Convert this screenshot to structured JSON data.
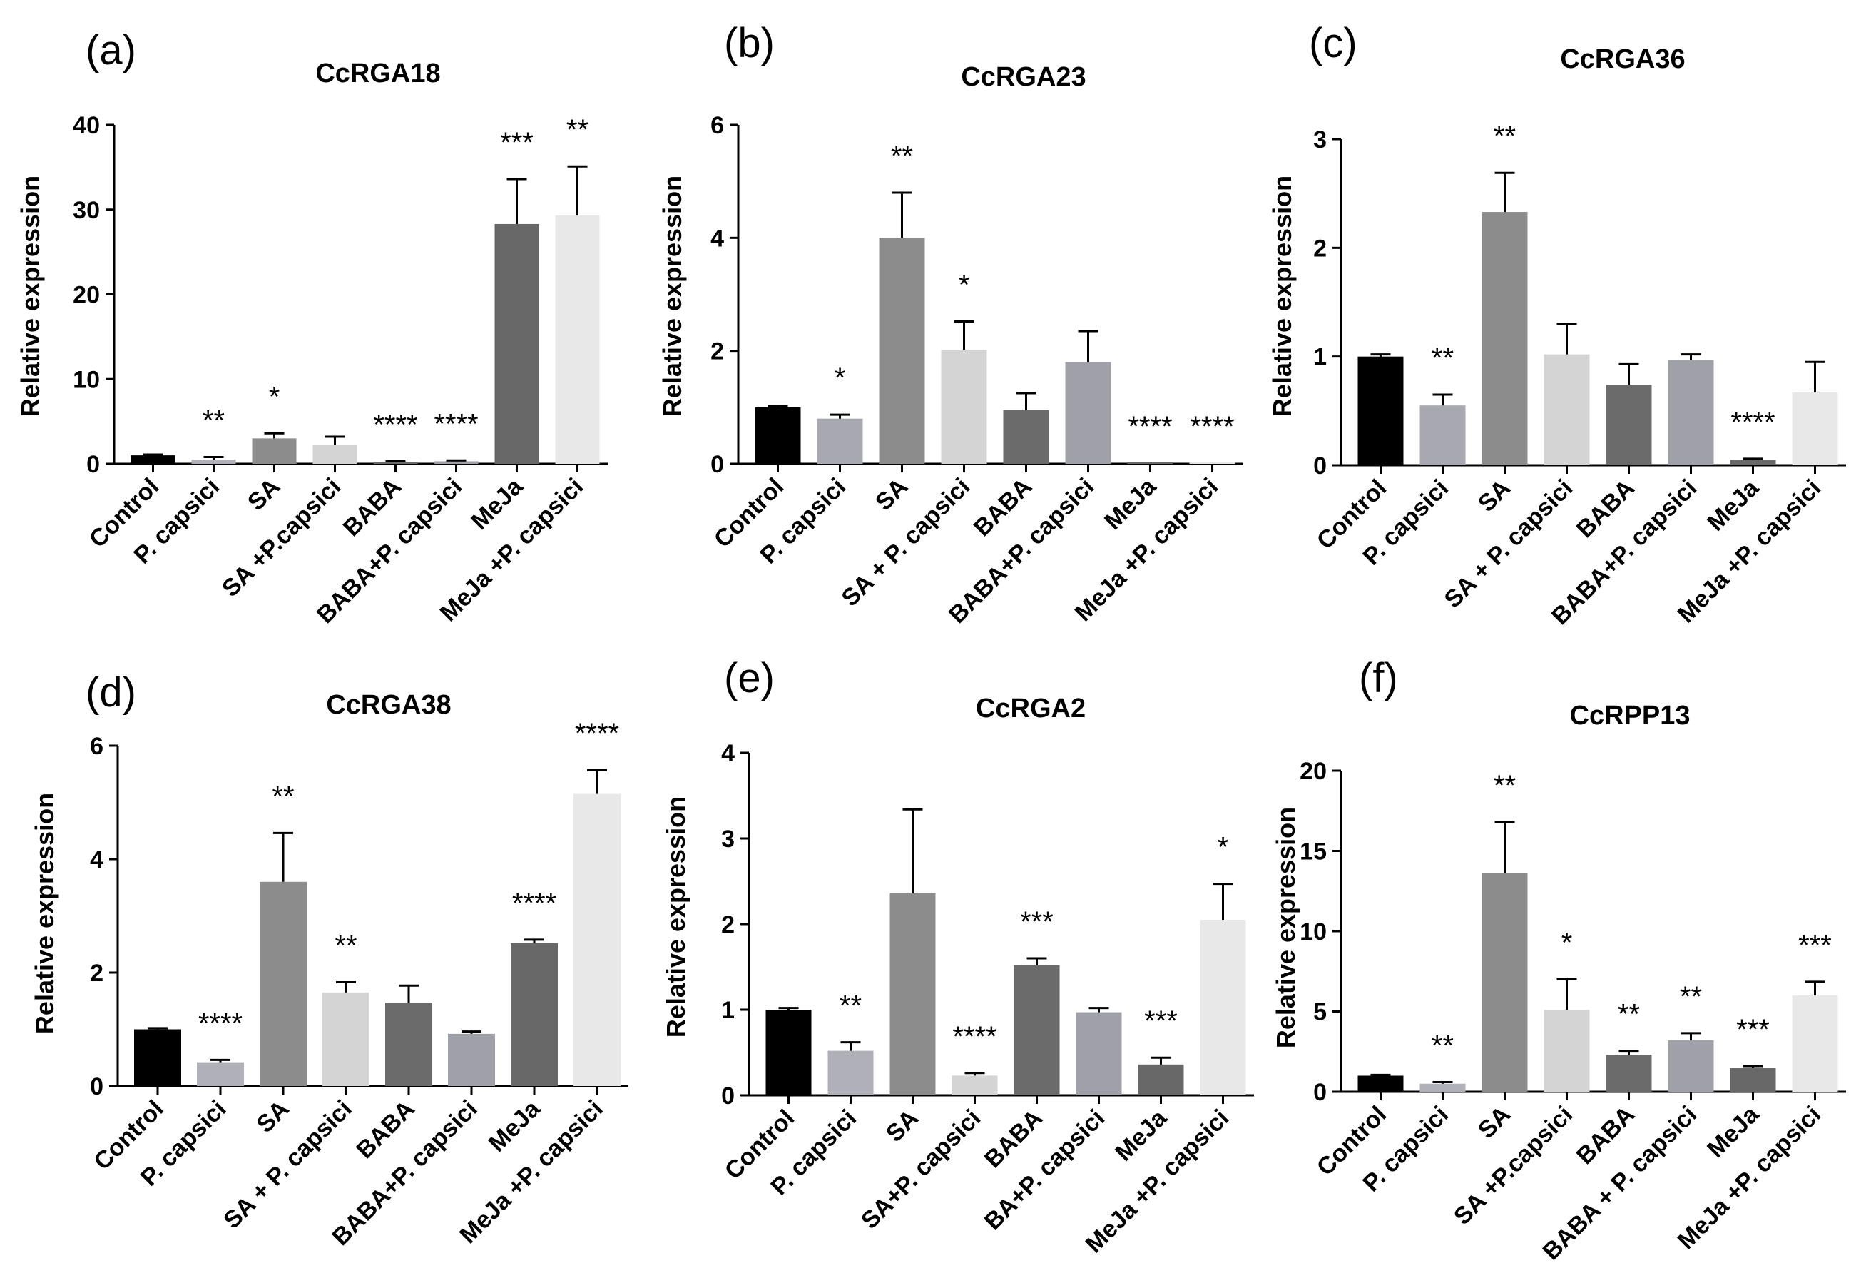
{
  "chart_data": [
    {
      "type": "bar",
      "panel": "(a)",
      "title": "CcRGA18",
      "ylabel": "Relative expression",
      "xlabel": "",
      "ylim": [
        0,
        40
      ],
      "yticks": [
        0,
        10,
        20,
        30,
        40
      ],
      "ytick_labels": [
        "0",
        "10",
        "20",
        "30",
        "40"
      ],
      "categories": [
        "Control",
        "P. capsici",
        "SA",
        "SA +P.capsici",
        "BABA",
        "BABA+P. capsici",
        "MeJa",
        "MeJa +P. capsici"
      ],
      "values": [
        1,
        0.5,
        3,
        2.2,
        0.2,
        0.3,
        28.3,
        29.3
      ],
      "errors": [
        0.1,
        0.3,
        0.6,
        1.0,
        0.1,
        0.1,
        5.3,
        5.8
      ],
      "significance": [
        "",
        "**",
        "*",
        "",
        "****",
        "****",
        "***",
        "**"
      ],
      "colors": [
        "#000000",
        "#b0b0b8",
        "#8c8c8c",
        "#d4d4d4",
        "#6b6b6b",
        "#a0a0a8",
        "#686868",
        "#e8e8e8"
      ]
    },
    {
      "type": "bar",
      "panel": "(b)",
      "title": "CcRGA23",
      "ylabel": "Relative expression",
      "xlabel": "",
      "ylim": [
        0,
        6
      ],
      "yticks": [
        0,
        2,
        4,
        6
      ],
      "ytick_labels": [
        "0",
        "2",
        "4",
        "6"
      ],
      "categories": [
        "Control",
        "P. capsici",
        "SA",
        "SA + P. capsici",
        "BABA",
        "BABA+P. capsici",
        "MeJa",
        "MeJa +P. capsici"
      ],
      "values": [
        1,
        0.8,
        4,
        2.02,
        0.95,
        1.8,
        0.01,
        0.01
      ],
      "errors": [
        0.02,
        0.07,
        0.8,
        0.5,
        0.3,
        0.55,
        0,
        0
      ],
      "significance": [
        "",
        "*",
        "**",
        "*",
        "",
        "",
        "****",
        "****"
      ],
      "colors": [
        "#000000",
        "#a8a8b0",
        "#8c8c8c",
        "#d4d4d4",
        "#6b6b6b",
        "#a0a0a8",
        "#686868",
        "#e8e8e8"
      ]
    },
    {
      "type": "bar",
      "panel": "(c)",
      "title": "CcRGA36",
      "ylabel": "Relative expression",
      "xlabel": "",
      "ylim": [
        0,
        3
      ],
      "yticks": [
        0,
        1,
        2,
        3
      ],
      "ytick_labels": [
        "0",
        "1",
        "2",
        "3"
      ],
      "categories": [
        "Control",
        "P. capsici",
        "SA",
        "SA + P. capsici",
        "BABA",
        "BABA+P. capsici",
        "MeJa",
        "MeJa +P. capsici"
      ],
      "values": [
        1,
        0.55,
        2.33,
        1.02,
        0.74,
        0.97,
        0.05,
        0.67
      ],
      "errors": [
        0.02,
        0.1,
        0.36,
        0.28,
        0.19,
        0.05,
        0.01,
        0.28
      ],
      "significance": [
        "",
        "**",
        "**",
        "",
        "",
        "",
        "****",
        ""
      ],
      "colors": [
        "#000000",
        "#a8a8b0",
        "#8c8c8c",
        "#d4d4d4",
        "#6b6b6b",
        "#a0a0a8",
        "#686868",
        "#e8e8e8"
      ]
    },
    {
      "type": "bar",
      "panel": "(d)",
      "title": "CcRGA38",
      "ylabel": "Relative expression",
      "xlabel": "",
      "ylim": [
        0,
        6
      ],
      "yticks": [
        0,
        2,
        4,
        6
      ],
      "ytick_labels": [
        "0",
        "2",
        "4",
        "6"
      ],
      "categories": [
        "Control",
        "P. capsici",
        "SA",
        "SA + P. capsici",
        "BABA",
        "BABA+P. capsici",
        "MeJa",
        "MeJa +P. capsici"
      ],
      "values": [
        1,
        0.42,
        3.6,
        1.65,
        1.47,
        0.92,
        2.52,
        5.15
      ],
      "errors": [
        0.02,
        0.04,
        0.86,
        0.18,
        0.3,
        0.04,
        0.06,
        0.42
      ],
      "significance": [
        "",
        "****",
        "**",
        "**",
        "",
        "",
        "****",
        "****"
      ],
      "colors": [
        "#000000",
        "#b0b0b8",
        "#8c8c8c",
        "#d4d4d4",
        "#6b6b6b",
        "#a0a0a8",
        "#686868",
        "#e8e8e8"
      ]
    },
    {
      "type": "bar",
      "panel": "(e)",
      "title": "CcRGA2",
      "ylabel": "Relative expression",
      "xlabel": "",
      "ylim": [
        0,
        4
      ],
      "yticks": [
        0,
        1,
        2,
        3,
        4
      ],
      "ytick_labels": [
        "0",
        "1",
        "2",
        "3",
        "4"
      ],
      "categories": [
        "Control",
        "P. capsici",
        "SA",
        "SA+P. capsici",
        "BABA",
        "BA+P. capsici",
        "MeJa",
        "MeJa +P. capsici"
      ],
      "values": [
        1,
        0.52,
        2.36,
        0.23,
        1.52,
        0.97,
        0.36,
        2.05
      ],
      "errors": [
        0.02,
        0.1,
        0.98,
        0.03,
        0.08,
        0.05,
        0.08,
        0.42
      ],
      "significance": [
        "",
        "**",
        "",
        "****",
        "***",
        "",
        "***",
        "*"
      ],
      "colors": [
        "#000000",
        "#b0b0b8",
        "#8c8c8c",
        "#d4d4d4",
        "#6b6b6b",
        "#a0a0a8",
        "#686868",
        "#e8e8e8"
      ]
    },
    {
      "type": "bar",
      "panel": "(f)",
      "title": "CcRPP13",
      "ylabel": "Relative expression",
      "xlabel": "",
      "ylim": [
        0,
        20
      ],
      "yticks": [
        0,
        5,
        10,
        15,
        20
      ],
      "ytick_labels": [
        "0",
        "5",
        "10",
        "15",
        "20"
      ],
      "categories": [
        "Control",
        "P. capsici",
        "SA",
        "SA +P.capsici",
        "BABA",
        "BABA + P. capsici",
        "MeJa",
        "MeJa +P. capsici"
      ],
      "values": [
        1,
        0.5,
        13.6,
        5.1,
        2.3,
        3.2,
        1.5,
        6.0
      ],
      "errors": [
        0.05,
        0.1,
        3.2,
        1.9,
        0.25,
        0.45,
        0.1,
        0.85
      ],
      "significance": [
        "",
        "**",
        "**",
        "*",
        "**",
        "**",
        "***",
        "***"
      ],
      "colors": [
        "#000000",
        "#b0b0b8",
        "#8c8c8c",
        "#d4d4d4",
        "#6b6b6b",
        "#a0a0a8",
        "#686868",
        "#e8e8e8"
      ]
    }
  ]
}
